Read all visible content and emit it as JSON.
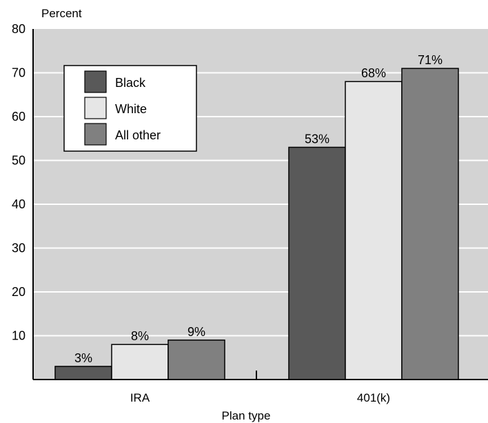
{
  "chart_data": {
    "type": "bar",
    "ylabel": "Percent",
    "xlabel": "Plan type",
    "ylim": [
      0,
      80
    ],
    "yticks": [
      10,
      20,
      30,
      40,
      50,
      60,
      70,
      80
    ],
    "grid": true,
    "legend_position": "top-left",
    "categories": [
      "IRA",
      "401(k)"
    ],
    "series": [
      {
        "name": "Black",
        "color": "#595959",
        "values": [
          3,
          53
        ],
        "labels": [
          "3%",
          "53%"
        ]
      },
      {
        "name": "White",
        "color": "#e6e6e6",
        "values": [
          8,
          68
        ],
        "labels": [
          "8%",
          "68%"
        ]
      },
      {
        "name": "All other",
        "color": "#808080",
        "values": [
          9,
          71
        ],
        "labels": [
          "9%",
          "71%"
        ]
      }
    ]
  }
}
